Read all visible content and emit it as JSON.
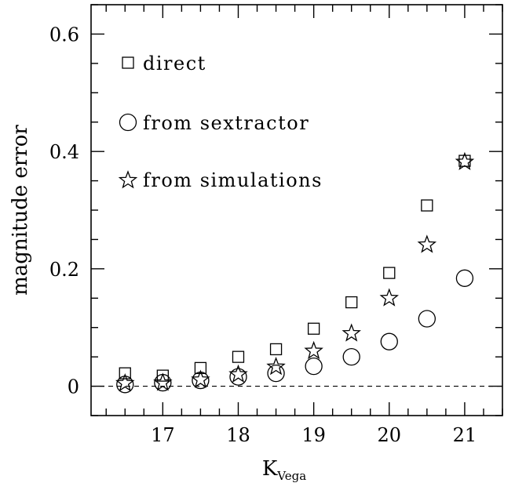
{
  "chart_data": {
    "type": "scatter",
    "xlabel": "K",
    "xlabel_subscript": "Vega",
    "ylabel": "magnitude error",
    "xlim": [
      16.05,
      21.5
    ],
    "ylim": [
      -0.05,
      0.65
    ],
    "x_ticks": [
      17,
      18,
      19,
      20,
      21
    ],
    "x_tick_labels": [
      "17",
      "18",
      "19",
      "20",
      "21"
    ],
    "y_ticks": [
      0,
      0.2,
      0.4,
      0.6
    ],
    "y_tick_labels": [
      "0",
      "0.2",
      "0.4",
      "0.6"
    ],
    "zero_line": {
      "y": 0,
      "style": "dashed"
    },
    "grid": false,
    "legend_position": "top-left",
    "x": [
      16.5,
      17.0,
      17.5,
      18.0,
      18.5,
      19.0,
      19.5,
      20.0,
      20.5,
      21.0
    ],
    "series": [
      {
        "name": "direct",
        "marker": "square",
        "values": [
          0.022,
          0.018,
          0.031,
          0.05,
          0.063,
          0.098,
          0.143,
          0.193,
          0.308,
          0.384
        ]
      },
      {
        "name": "from sextractor",
        "marker": "circle",
        "values": [
          0.003,
          0.006,
          0.01,
          0.016,
          0.022,
          0.034,
          0.05,
          0.076,
          0.115,
          0.184
        ]
      },
      {
        "name": "from simulations",
        "marker": "star",
        "values": [
          0.005,
          0.006,
          0.011,
          0.02,
          0.033,
          0.06,
          0.09,
          0.15,
          0.241,
          0.382
        ]
      }
    ]
  }
}
